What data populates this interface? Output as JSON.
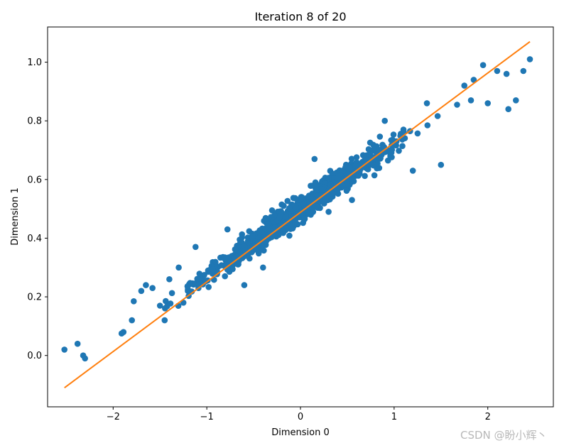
{
  "chart_data": {
    "type": "scatter",
    "title": "Iteration 8 of 20",
    "xlabel": "Dimension 0",
    "ylabel": "Dimension 1",
    "xlim": [
      -2.7,
      2.7
    ],
    "ylim": [
      -0.175,
      1.12
    ],
    "xticks": [
      -2,
      -1,
      0,
      1,
      2
    ],
    "yticks": [
      0.0,
      0.2,
      0.4,
      0.6,
      0.8,
      1.0
    ],
    "xtick_labels": [
      "−2",
      "−1",
      "0",
      "1",
      "2"
    ],
    "ytick_labels": [
      "0.0",
      "0.2",
      "0.4",
      "0.6",
      "0.8",
      "1.0"
    ],
    "grid": false,
    "colors": {
      "points": "#1f77b4",
      "line": "#ff7f0e"
    },
    "series": [
      {
        "type": "scatter",
        "approx_count": 1000,
        "trend": {
          "slope": 0.23,
          "intercept": 0.5,
          "noise_sd": 0.04
        },
        "points": [
          [
            -2.52,
            0.02
          ],
          [
            -2.38,
            0.04
          ],
          [
            -2.32,
            0.0
          ],
          [
            -2.3,
            -0.01
          ],
          [
            -1.89,
            0.08
          ],
          [
            -1.91,
            0.075
          ],
          [
            -1.8,
            0.12
          ],
          [
            -1.78,
            0.185
          ],
          [
            -1.7,
            0.22
          ],
          [
            -1.65,
            0.24
          ],
          [
            -1.58,
            0.23
          ],
          [
            -1.5,
            0.17
          ],
          [
            -1.45,
            0.12
          ],
          [
            -1.4,
            0.26
          ],
          [
            -1.3,
            0.3
          ],
          [
            -1.25,
            0.18
          ],
          [
            -1.12,
            0.37
          ],
          [
            -1.05,
            0.26
          ],
          [
            -0.78,
            0.43
          ],
          [
            -0.6,
            0.24
          ],
          [
            -0.4,
            0.3
          ],
          [
            0.15,
            0.67
          ],
          [
            0.3,
            0.49
          ],
          [
            0.55,
            0.53
          ],
          [
            0.9,
            0.8
          ],
          [
            1.1,
            0.77
          ],
          [
            1.2,
            0.63
          ],
          [
            1.35,
            0.86
          ],
          [
            1.5,
            0.65
          ],
          [
            1.75,
            0.92
          ],
          [
            1.82,
            0.87
          ],
          [
            1.85,
            0.94
          ],
          [
            1.95,
            0.99
          ],
          [
            2.0,
            0.86
          ],
          [
            2.1,
            0.97
          ],
          [
            2.2,
            0.96
          ],
          [
            2.22,
            0.84
          ],
          [
            2.3,
            0.87
          ],
          [
            2.38,
            0.97
          ],
          [
            2.45,
            1.01
          ]
        ]
      },
      {
        "type": "line",
        "x": [
          -2.52,
          2.45
        ],
        "y": [
          -0.11,
          1.07
        ]
      }
    ]
  },
  "watermark": "CSDN @盼小辉丶"
}
